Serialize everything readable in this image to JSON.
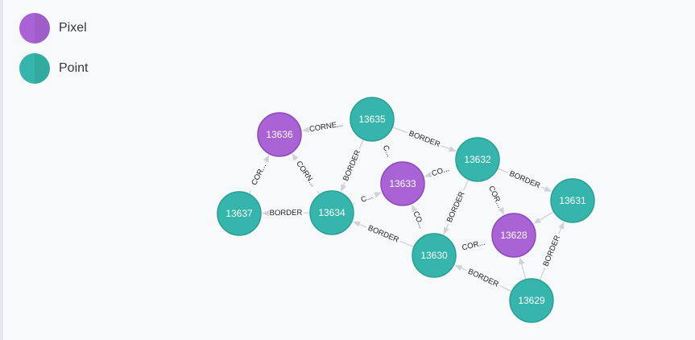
{
  "legend": {
    "items": [
      {
        "label": "Pixel",
        "color": "#a963d4",
        "shade": "#9b54c6"
      },
      {
        "label": "Point",
        "color": "#35b5ab",
        "shade": "#2ea79d"
      }
    ]
  },
  "graph": {
    "node_colors": {
      "Pixel": "#a963d4",
      "Point": "#35b5ab"
    },
    "node_strokes": {
      "Pixel": "#8f48bc",
      "Point": "#2a9f95"
    },
    "nodes": [
      {
        "id": "13635",
        "type": "Point"
      },
      {
        "id": "13636",
        "type": "Pixel"
      },
      {
        "id": "13632",
        "type": "Point"
      },
      {
        "id": "13633",
        "type": "Pixel"
      },
      {
        "id": "13634",
        "type": "Point"
      },
      {
        "id": "13637",
        "type": "Point"
      },
      {
        "id": "13631",
        "type": "Point"
      },
      {
        "id": "13628",
        "type": "Pixel"
      },
      {
        "id": "13630",
        "type": "Point"
      },
      {
        "id": "13629",
        "type": "Point"
      }
    ],
    "edges": [
      {
        "source": "13635",
        "target": "13636",
        "label": "CORNE..."
      },
      {
        "source": "13635",
        "target": "13632",
        "label": "BORDER"
      },
      {
        "source": "13635",
        "target": "13634",
        "label": "BORDER"
      },
      {
        "source": "13635",
        "target": "13633",
        "label": "C..."
      },
      {
        "source": "13634",
        "target": "13636",
        "label": "CORN..."
      },
      {
        "source": "13637",
        "target": "13636",
        "label": "COR..."
      },
      {
        "source": "13634",
        "target": "13637",
        "label": "BORDER"
      },
      {
        "source": "13632",
        "target": "13633",
        "label": "CO..."
      },
      {
        "source": "13634",
        "target": "13633",
        "label": "C..."
      },
      {
        "source": "13632",
        "target": "13631",
        "label": "BORDER"
      },
      {
        "source": "13632",
        "target": "13630",
        "label": "BORDER"
      },
      {
        "source": "13632",
        "target": "13628",
        "label": "COR..."
      },
      {
        "source": "13630",
        "target": "13633",
        "label": "CO..."
      },
      {
        "source": "13630",
        "target": "13634",
        "label": "BORDER"
      },
      {
        "source": "13630",
        "target": "13628",
        "label": "COR..."
      },
      {
        "source": "13631",
        "target": "13628",
        "label": ""
      },
      {
        "source": "13629",
        "target": "13630",
        "label": "BORDER"
      },
      {
        "source": "13629",
        "target": "13631",
        "label": "BORDER"
      },
      {
        "source": "13629",
        "target": "13628",
        "label": ""
      }
    ]
  }
}
